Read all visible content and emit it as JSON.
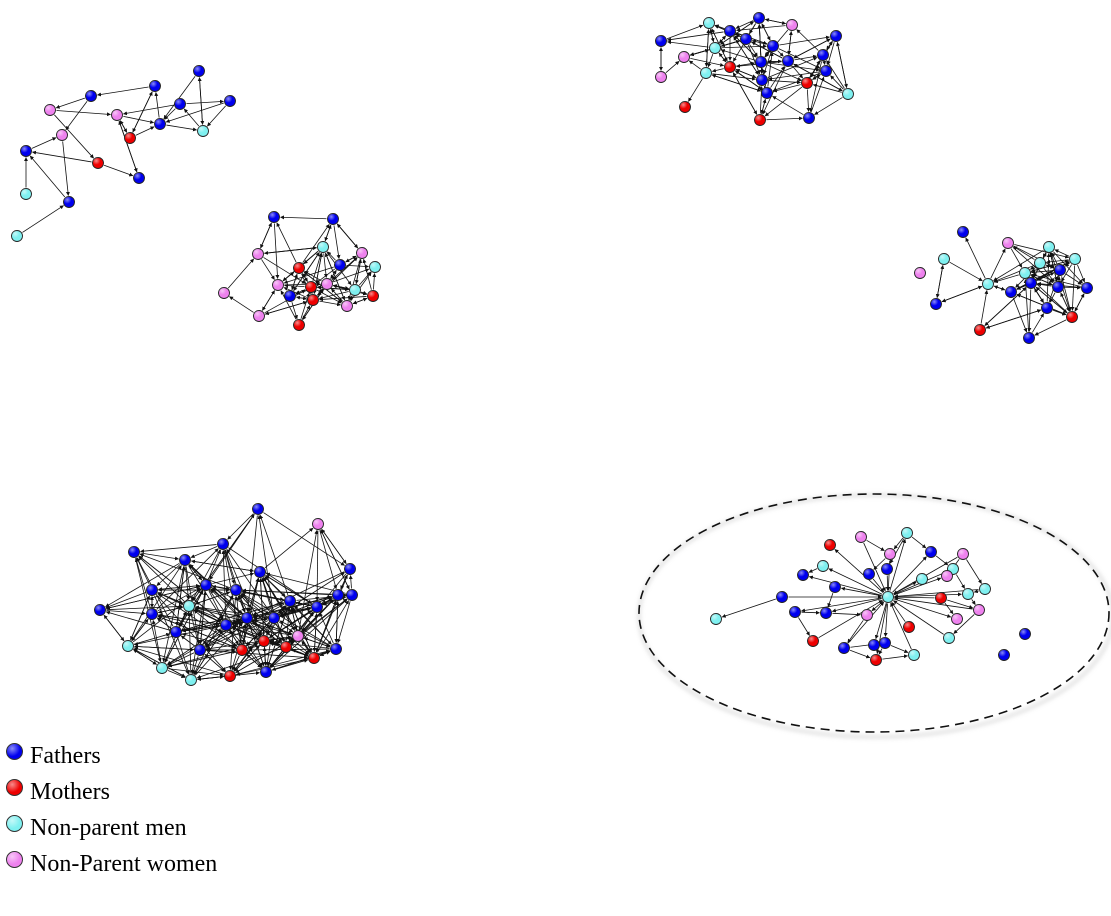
{
  "colors": {
    "fathers": "#0000ee",
    "mothers": "#ee0000",
    "nonparent_men": "#7ff0f0",
    "nonparent_women": "#ee82ee",
    "edge": "#111111"
  },
  "legend": {
    "fathers": "Fathers",
    "mothers": "Mothers",
    "nonparent_men": "Non-parent men",
    "nonparent_women": "Non-Parent women"
  },
  "networks": [
    {
      "id": "network-1",
      "node_count": 17
    },
    {
      "id": "network-2",
      "node_count": 19
    },
    {
      "id": "network-3",
      "node_count": 24
    },
    {
      "id": "network-4",
      "node_count": 19
    },
    {
      "id": "network-5",
      "node_count": 31
    },
    {
      "id": "network-6",
      "node_count": 33,
      "highlighted": true
    }
  ]
}
